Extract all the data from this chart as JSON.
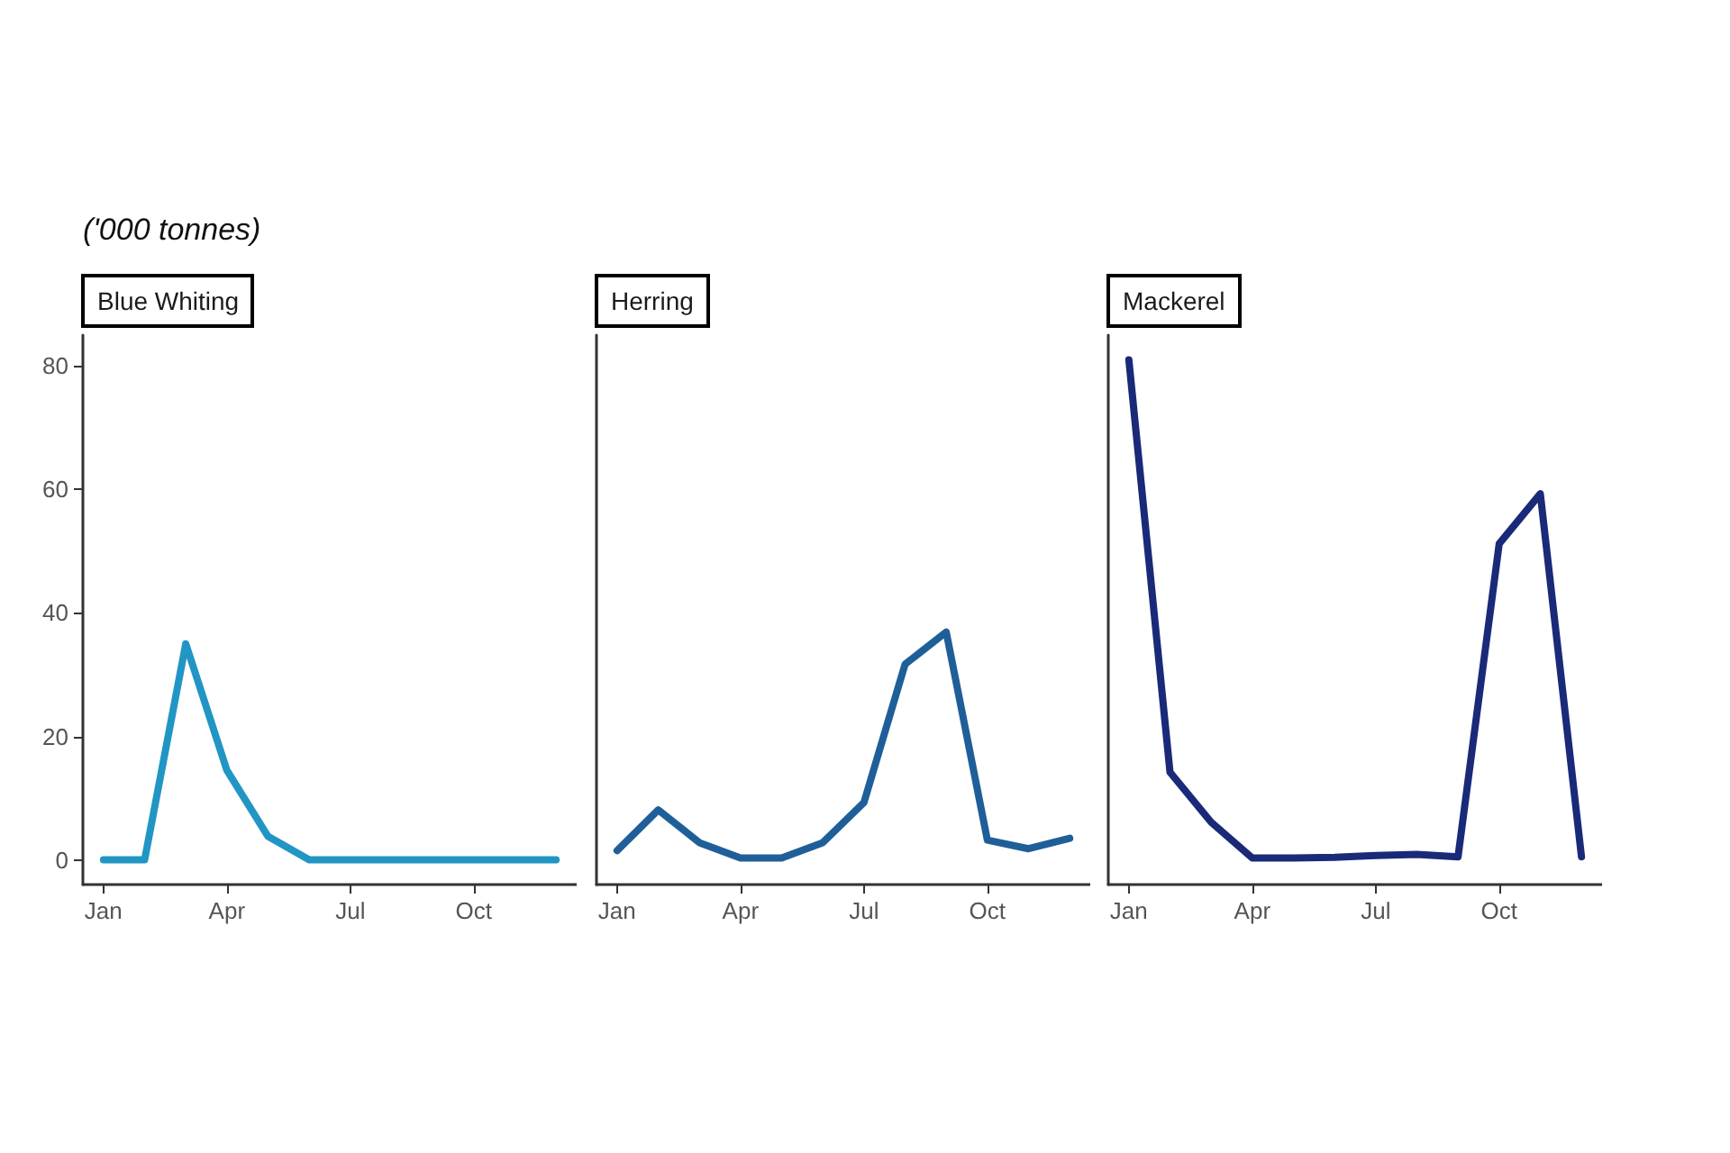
{
  "chart_data": [
    {
      "type": "line",
      "title": "Blue Whiting",
      "ylabel": "('000 tonnes)",
      "categories": [
        "Jan",
        null,
        null,
        "Apr",
        null,
        null,
        "Jul",
        null,
        null,
        "Oct",
        null,
        null
      ],
      "values": [
        0,
        0,
        35,
        14.5,
        3.8,
        0,
        0,
        0,
        0,
        0,
        0,
        0
      ],
      "color": "#2196c4",
      "ylim": [
        -4,
        85
      ],
      "yticks": [
        0,
        20,
        40,
        60,
        80
      ],
      "grid": false,
      "marker": "none",
      "line_style": "solid"
    },
    {
      "type": "line",
      "title": "Herring",
      "categories": [
        "Jan",
        null,
        null,
        "Apr",
        null,
        null,
        "Jul",
        null,
        null,
        "Oct",
        null,
        null
      ],
      "values": [
        1.5,
        8.1,
        2.8,
        0.3,
        0.3,
        2.8,
        9.3,
        31.7,
        36.9,
        3.2,
        1.8,
        3.5
      ],
      "color": "#1f5f99",
      "ylim": [
        -4,
        85
      ],
      "yticks": [
        0,
        20,
        40,
        60,
        80
      ],
      "tick_labels": "x",
      "grid": false,
      "marker": "none",
      "line_style": "solid"
    },
    {
      "type": "line",
      "title": "Mackerel",
      "categories": [
        "Jan",
        null,
        null,
        "Apr",
        null,
        null,
        "Jul",
        null,
        null,
        "Oct",
        null,
        null
      ],
      "values": [
        81,
        14.2,
        6.1,
        0.3,
        0.3,
        0.4,
        0.7,
        0.9,
        0.5,
        51.2,
        59.3,
        0.5
      ],
      "color": "#1a2a78",
      "ylim": [
        -4,
        85
      ],
      "yticks": [
        0,
        20,
        40,
        60,
        80
      ],
      "tick_labels": "x",
      "grid": false,
      "marker": "none",
      "line_style": "solid"
    }
  ]
}
